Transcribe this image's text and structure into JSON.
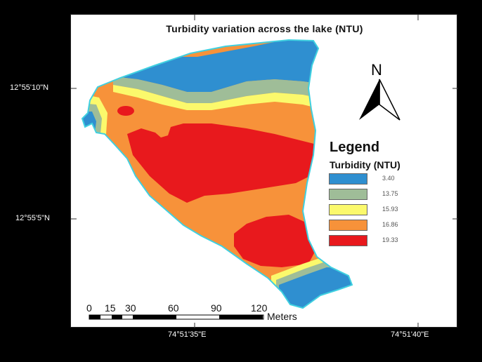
{
  "map": {
    "title": "Turbidity variation across the lake (NTU)",
    "coords": {
      "lat_top": "12°55'10\"N",
      "lat_bottom": "12°55'5\"N",
      "lon_left": "74°51'35\"E",
      "lon_right": "74°51'40\"E"
    },
    "north_arrow": {
      "label": "N",
      "icon": "north-arrow-icon"
    },
    "legend": {
      "title": "Legend",
      "subtitle": "Turbidity (NTU)",
      "items": [
        {
          "label": "3.40",
          "color": "#2f8fd0"
        },
        {
          "label": "13.75",
          "color": "#9fbd98"
        },
        {
          "label": "15.93",
          "color": "#fbf96c"
        },
        {
          "label": "16.86",
          "color": "#f7923a"
        },
        {
          "label": "19.33",
          "color": "#e8191d"
        }
      ]
    },
    "scale_bar": {
      "ticks": [
        "0",
        "15",
        "30",
        "60",
        "90",
        "120"
      ],
      "unit": "Meters"
    },
    "lake_outline_color": "#3fd0e0"
  }
}
